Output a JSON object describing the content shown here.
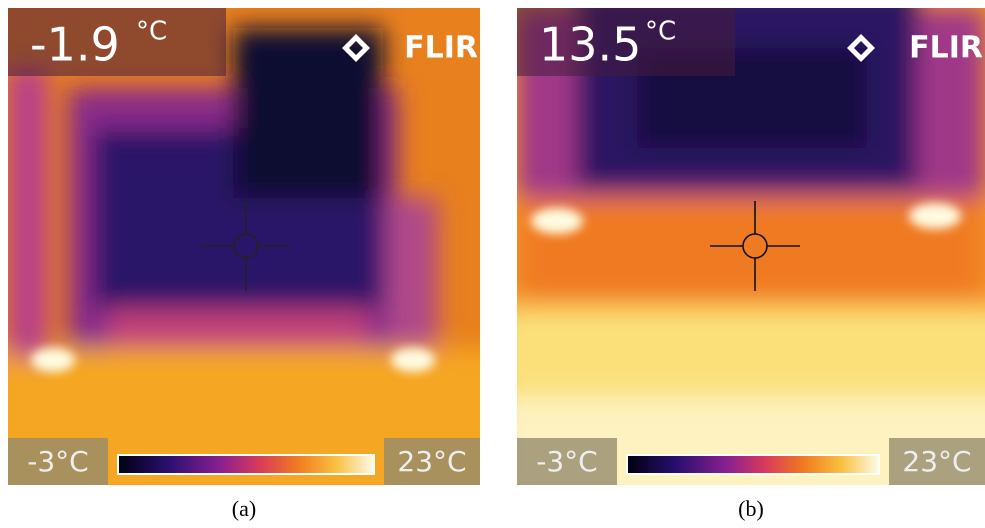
{
  "panels": [
    {
      "reading": "-1.9",
      "unit": "°C",
      "logo": "FLIR",
      "scale_min": "-3°C",
      "scale_max": "23°C",
      "caption": "(a)"
    },
    {
      "reading": "13.5",
      "unit": "°C",
      "logo": "FLIR",
      "scale_min": "-3°C",
      "scale_max": "23°C",
      "caption": "(b)"
    }
  ]
}
